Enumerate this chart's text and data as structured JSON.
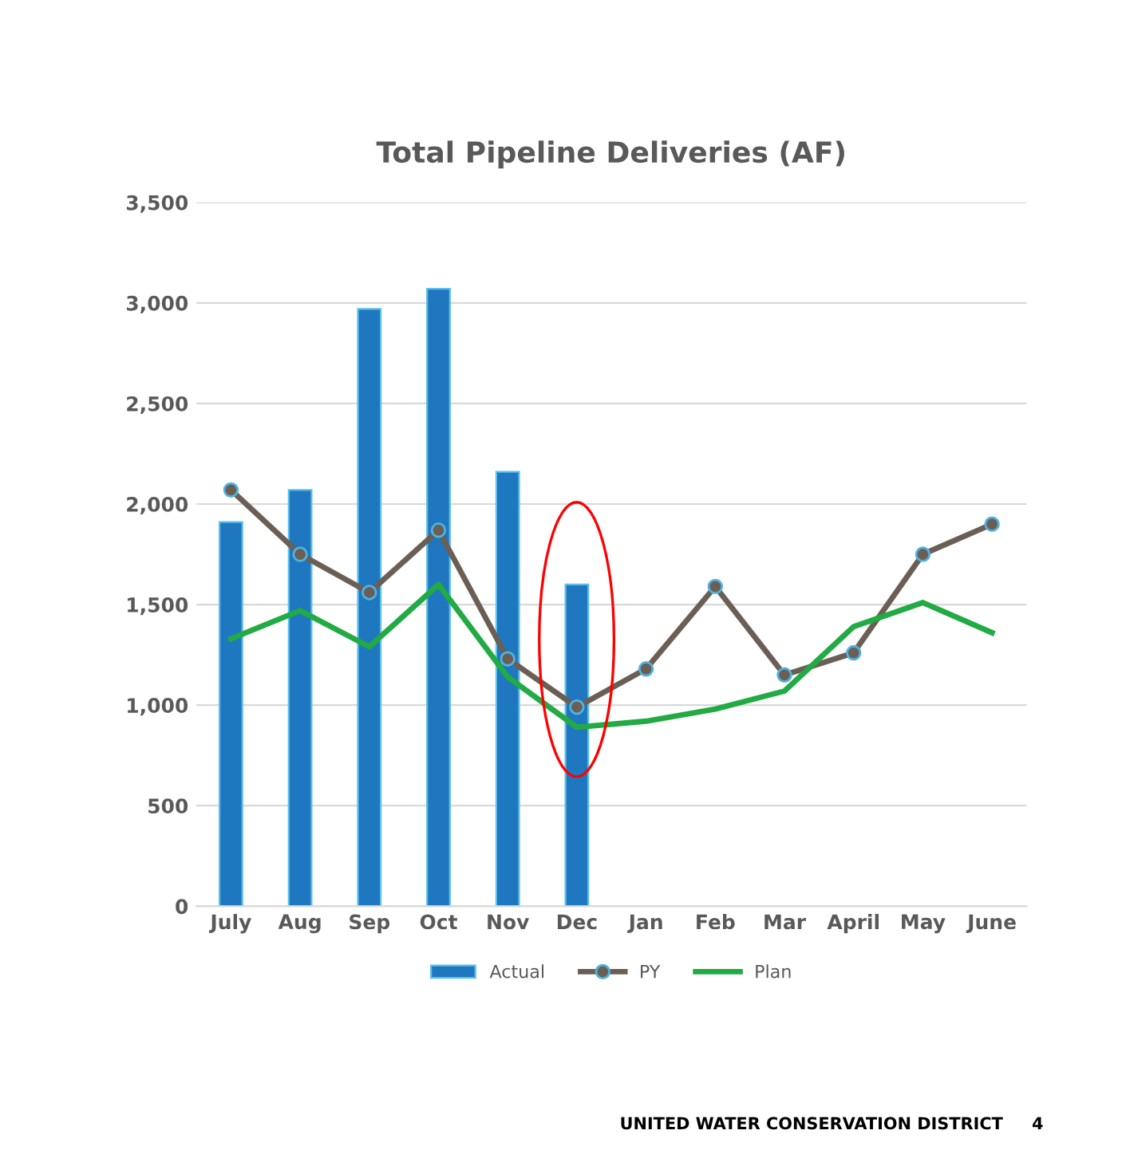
{
  "chart_data": {
    "type": "bar",
    "title": "Total Pipeline Deliveries (AF)",
    "categories": [
      "July",
      "Aug",
      "Sep",
      "Oct",
      "Nov",
      "Dec",
      "Jan",
      "Feb",
      "Mar",
      "April",
      "May",
      "June"
    ],
    "series": [
      {
        "name": "Actual",
        "color": "#1f77bf",
        "values": [
          1910,
          2070,
          2970,
          3070,
          2160,
          1600,
          null,
          null,
          null,
          null,
          null,
          null
        ]
      },
      {
        "name": "PY",
        "type": "line",
        "color": "#6b5f55",
        "marker": "circle",
        "values": [
          2070,
          1750,
          1560,
          1870,
          1230,
          990,
          1180,
          1590,
          1150,
          1260,
          1750,
          1900
        ]
      },
      {
        "name": "Plan",
        "type": "line",
        "color": "#22aa44",
        "values": [
          1330,
          1470,
          1290,
          1600,
          1140,
          890,
          920,
          980,
          1070,
          1390,
          1510,
          1360
        ]
      }
    ],
    "ylim": [
      0,
      3500
    ],
    "yticks": [
      {
        "value": 0,
        "label": "0"
      },
      {
        "value": 500,
        "label": "500"
      },
      {
        "value": 1000,
        "label": "1,000"
      },
      {
        "value": 1500,
        "label": "1,500"
      },
      {
        "value": 2000,
        "label": "2,000"
      },
      {
        "value": 2500,
        "label": "2,500"
      },
      {
        "value": 3000,
        "label": "3,000"
      },
      {
        "value": 3500,
        "label": "3,500"
      }
    ],
    "grid": "y",
    "legend": "bottom",
    "annotations": [
      "UNITED WATER CONSERVATION DISTRICT     4"
    ]
  }
}
